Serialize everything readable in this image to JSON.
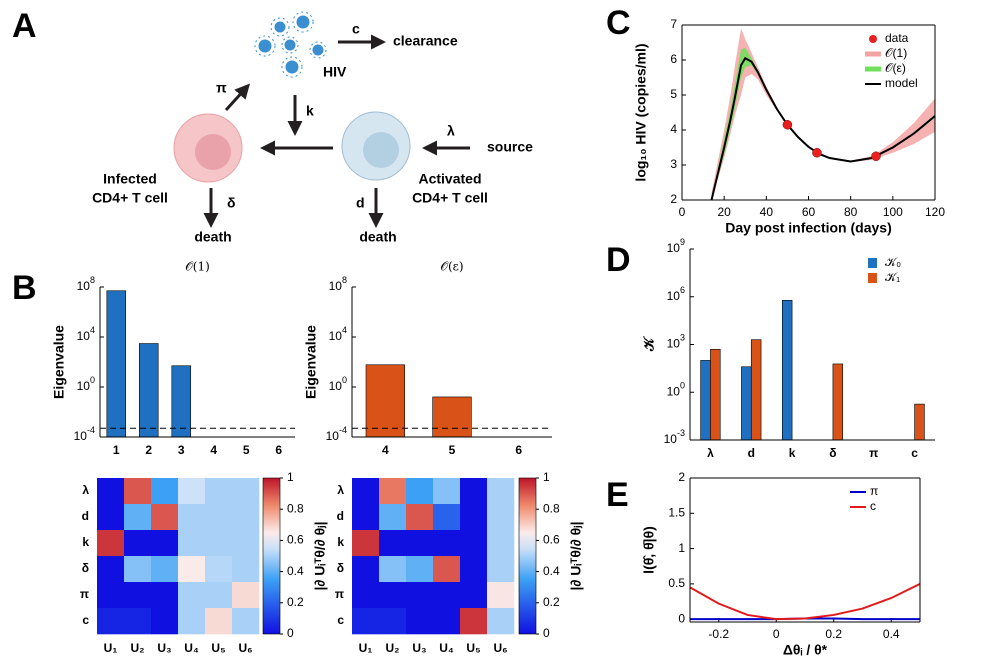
{
  "panel_labels": [
    "A",
    "B",
    "C",
    "D",
    "E"
  ],
  "diagram": {
    "virus_label": "HIV",
    "clearance_rate": "c",
    "clearance": "clearance",
    "infection_rate": "k",
    "production_rate": "π",
    "source_rate": "λ",
    "source": "source",
    "infected_cell": [
      "Infected",
      "CD4+ T cell"
    ],
    "activated_cell": [
      "Activated",
      "CD4+ T cell"
    ],
    "infected_death_rate": "δ",
    "activated_death_rate": "d",
    "infected_death": "death",
    "activated_death": "death"
  },
  "chart_data": [
    {
      "type": "bar",
      "title": "𝒪(1)",
      "y_label": "Eigenvalue",
      "categories": [
        "1",
        "2",
        "3",
        "4",
        "5",
        "6"
      ],
      "values": [
        50000000,
        3000,
        50,
        null,
        null,
        null
      ],
      "color": "#1f70c1",
      "log": true,
      "hline": 0.0005,
      "ylim": [
        0.0001,
        100000000
      ],
      "yticks": [
        {
          "value": 0.0001,
          "label": "10^-4"
        },
        {
          "value": 1,
          "label": "10^0"
        },
        {
          "value": 10000,
          "label": "10^4"
        },
        {
          "value": 100000000,
          "label": "10^8"
        }
      ]
    },
    {
      "type": "bar",
      "title": "𝒪(ε)",
      "y_label": "Eigenvalue",
      "categories": [
        "4",
        "5",
        "6"
      ],
      "values": [
        60,
        0.16,
        null
      ],
      "color": "#d95319",
      "log": true,
      "hline": 0.0005,
      "ylim": [
        0.0001,
        100000000
      ],
      "yticks": [
        {
          "value": 0.0001,
          "label": "10^-4"
        },
        {
          "value": 1,
          "label": "10^0"
        },
        {
          "value": 10000,
          "label": "10^4"
        },
        {
          "value": 100000000,
          "label": "10^8"
        }
      ]
    },
    {
      "type": "heatmap",
      "rows": [
        "λ",
        "d",
        "k",
        "δ",
        "π",
        "c"
      ],
      "columns": [
        "U₁",
        "U₂",
        "U₃",
        "U₄",
        "U₅",
        "U₆"
      ],
      "values": [
        [
          0,
          0.9,
          0.35,
          0.55,
          0.5,
          0.5
        ],
        [
          0,
          0.4,
          0.9,
          0.5,
          0.5,
          0.5
        ],
        [
          0.95,
          0,
          0,
          0.5,
          0.5,
          0.5
        ],
        [
          0,
          0.45,
          0.4,
          0.65,
          0.52,
          0.5
        ],
        [
          0,
          0,
          0,
          0.5,
          0.5,
          0.68
        ],
        [
          0.05,
          0.05,
          0,
          0.5,
          0.68,
          0.5
        ]
      ],
      "clim": [
        0,
        1
      ],
      "cticks": [
        0,
        0.2,
        0.4,
        0.6,
        0.8,
        1
      ],
      "colorbar_label": "|∂ Uᵢᵀθ/∂ θⱼ|"
    },
    {
      "type": "heatmap",
      "rows": [
        "λ",
        "d",
        "k",
        "δ",
        "π",
        "c"
      ],
      "columns": [
        "U₁",
        "U₂",
        "U₃",
        "U₄",
        "U₅",
        "U₆"
      ],
      "values": [
        [
          0,
          0.85,
          0.35,
          0.45,
          0,
          0.5
        ],
        [
          0,
          0.4,
          0.9,
          0.2,
          0,
          0.5
        ],
        [
          0.95,
          0,
          0,
          0,
          0,
          0.5
        ],
        [
          0,
          0.45,
          0.4,
          0.9,
          0,
          0.5
        ],
        [
          0,
          0,
          0,
          0,
          0,
          0.66
        ],
        [
          0.05,
          0.05,
          0,
          0,
          0.95,
          0.5
        ]
      ],
      "clim": [
        0,
        1
      ],
      "cticks": [
        0,
        0.2,
        0.4,
        0.6,
        0.8,
        1
      ],
      "colorbar_label": "|∂ Uᵢᵀθ/∂ θⱼ|"
    },
    {
      "type": "line",
      "x_label": "Day post infection (days)",
      "y_label": "log₁₀ HIV (copies/ml)",
      "legend": "upper right",
      "x": [
        14,
        17,
        20,
        23,
        25,
        28,
        30,
        33,
        36,
        40,
        45,
        50,
        55,
        60,
        65,
        70,
        80,
        90,
        100,
        110,
        120
      ],
      "series": [
        {
          "name": "data",
          "color": "#e8201f",
          "x": [
            50,
            64,
            92
          ],
          "values": [
            4.15,
            3.35,
            3.25
          ]
        },
        {
          "name": "𝒪(1)",
          "color": "#f4a3a3",
          "upper": [
            2.2,
            3.1,
            4.0,
            5.0,
            5.8,
            6.9,
            6.6,
            6.2,
            5.8,
            5.25,
            4.65,
            4.18,
            3.82,
            3.54,
            3.34,
            3.22,
            3.12,
            3.25,
            3.65,
            4.2,
            4.9
          ],
          "lower": [
            2.0,
            2.6,
            3.2,
            3.9,
            4.4,
            5.0,
            5.5,
            5.6,
            5.45,
            5.0,
            4.55,
            4.12,
            3.78,
            3.5,
            3.3,
            3.18,
            3.08,
            3.15,
            3.35,
            3.6,
            3.95
          ]
        },
        {
          "name": "𝒪(ε)",
          "color": "#6ee05a",
          "upper": [
            2.1,
            2.9,
            3.75,
            4.6,
            5.3,
            6.3,
            6.35,
            6.05,
            5.7,
            5.18,
            4.62,
            4.16,
            3.81,
            3.53,
            3.33,
            3.21,
            3.11,
            3.21,
            3.52,
            3.93,
            4.45
          ],
          "lower": [
            1.95,
            2.65,
            3.3,
            4.05,
            4.6,
            5.5,
            5.8,
            5.85,
            5.58,
            5.1,
            4.58,
            4.14,
            3.79,
            3.51,
            3.31,
            3.19,
            3.09,
            3.19,
            3.48,
            3.87,
            4.35
          ]
        },
        {
          "name": "model",
          "color": "#000000",
          "values": [
            2.0,
            2.75,
            3.5,
            4.3,
            4.9,
            5.85,
            6.05,
            5.95,
            5.65,
            5.15,
            4.6,
            4.15,
            3.8,
            3.52,
            3.32,
            3.2,
            3.1,
            3.2,
            3.5,
            3.9,
            4.4
          ]
        }
      ],
      "xlim": [
        0,
        120
      ],
      "xticks": [
        0,
        20,
        40,
        60,
        80,
        100,
        120
      ],
      "ylim": [
        2,
        7
      ],
      "yticks": [
        2,
        3,
        4,
        5,
        6,
        7
      ]
    },
    {
      "type": "bar",
      "y_label": "𝒦",
      "categories": [
        "λ",
        "d",
        "k",
        "δ",
        "π",
        "c"
      ],
      "log": true,
      "legend": "upper right",
      "series": [
        {
          "name": "𝒦₀",
          "color": "#1f70c1",
          "values": [
            100,
            40,
            600000,
            null,
            null,
            null
          ]
        },
        {
          "name": "𝒦₁",
          "color": "#d95319",
          "values": [
            500,
            2000,
            null,
            60,
            null,
            0.18
          ]
        }
      ],
      "ylim": [
        0.001,
        1000000000
      ],
      "yticks": [
        {
          "value": 0.001,
          "label": "10^-3"
        },
        {
          "value": 1,
          "label": "10^0"
        },
        {
          "value": 1000,
          "label": "10^3"
        },
        {
          "value": 1000000,
          "label": "10^6"
        },
        {
          "value": 1000000000,
          "label": "10^9"
        }
      ]
    },
    {
      "type": "line",
      "x_label": "Δθᵢ / θ*",
      "y_label": "l(θ̂, θ̄|θ)",
      "legend": "upper right",
      "x": [
        -0.3,
        -0.2,
        -0.1,
        0,
        0.1,
        0.2,
        0.3,
        0.4,
        0.5
      ],
      "series": [
        {
          "name": "π",
          "color": "#0000cc",
          "values": [
            0,
            0,
            0,
            0,
            0.01,
            0.01,
            0,
            0,
            0
          ]
        },
        {
          "name": "c",
          "color": "#e31a1c",
          "values": [
            0.45,
            0.22,
            0.06,
            0,
            0.01,
            0.06,
            0.15,
            0.3,
            0.5
          ]
        }
      ],
      "xlim": [
        -0.3,
        0.5
      ],
      "xticks": [
        -0.2,
        0,
        0.2,
        0.4
      ],
      "ylim": [
        -0.04,
        2
      ],
      "yticks": [
        0,
        0.5,
        1,
        1.5,
        2
      ]
    }
  ]
}
